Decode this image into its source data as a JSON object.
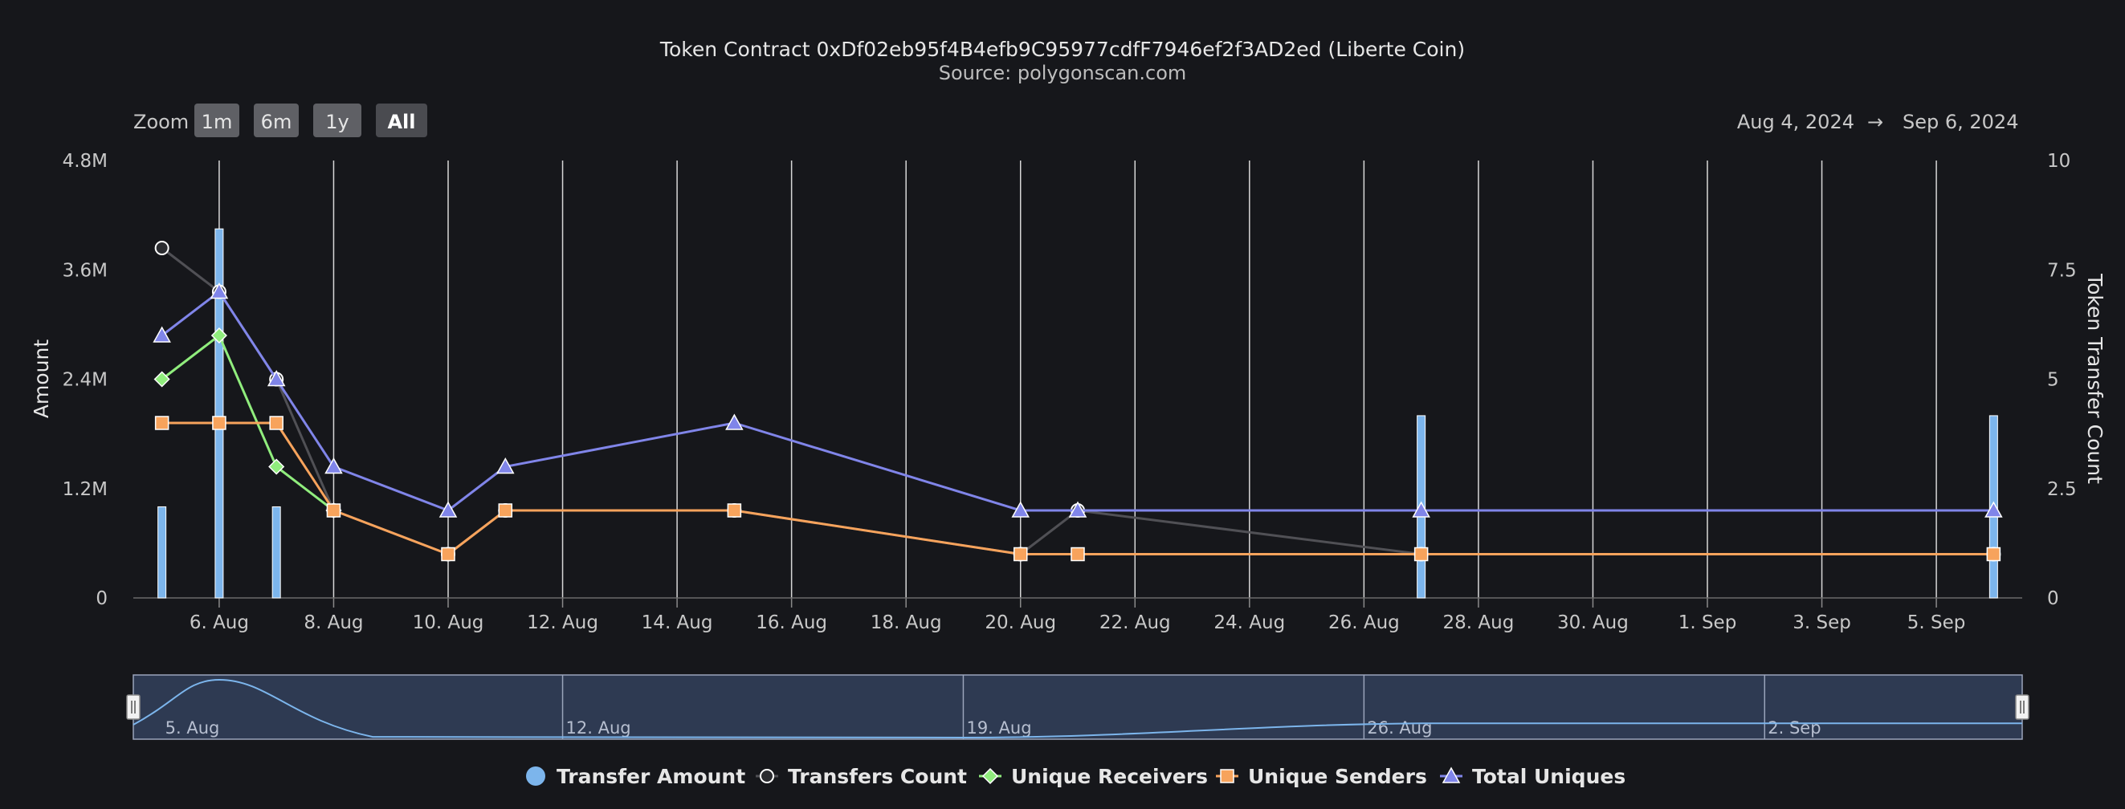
{
  "chart_data": {
    "type": "line",
    "title": "Token Contract 0xDf02eb95f4B4efb9C95977cdfF7946ef2f3AD2ed (Liberte Coin)",
    "subtitle": "Source: polygonscan.com",
    "zoom": {
      "label": "Zoom",
      "buttons": [
        "1m",
        "6m",
        "1y",
        "All"
      ],
      "selected": "All"
    },
    "range": {
      "from": "Aug 4, 2024",
      "arrow": "→",
      "to": "Sep 6, 2024"
    },
    "x_axis": {
      "min": "2024-08-04T12:00",
      "max": "2024-09-06T12:00",
      "tick_dates": [
        "2024-08-06",
        "2024-08-08",
        "2024-08-10",
        "2024-08-12",
        "2024-08-14",
        "2024-08-16",
        "2024-08-18",
        "2024-08-20",
        "2024-08-22",
        "2024-08-24",
        "2024-08-26",
        "2024-08-28",
        "2024-08-30",
        "2024-09-01",
        "2024-09-03",
        "2024-09-05"
      ],
      "tick_labels": [
        "6. Aug",
        "8. Aug",
        "10. Aug",
        "12. Aug",
        "14. Aug",
        "16. Aug",
        "18. Aug",
        "20. Aug",
        "22. Aug",
        "24. Aug",
        "26. Aug",
        "28. Aug",
        "30. Aug",
        "1. Sep",
        "3. Sep",
        "5. Sep"
      ],
      "grid": true
    },
    "y_left": {
      "label": "Amount",
      "min": 0,
      "max": 4800000,
      "ticks": [
        0,
        1200000,
        2400000,
        3600000,
        4800000
      ],
      "tick_labels": [
        "0",
        "1.2M",
        "2.4M",
        "3.6M",
        "4.8M"
      ]
    },
    "y_right": {
      "label": "Token Transfer Count",
      "min": 0,
      "max": 10,
      "ticks": [
        0,
        2.5,
        5,
        7.5,
        10
      ],
      "tick_labels": [
        "0",
        "2.5",
        "5",
        "7.5",
        "10"
      ]
    },
    "series": [
      {
        "name": "Transfer Amount",
        "kind": "column",
        "axis": "left",
        "color": "#7cb5ec",
        "marker": "circle",
        "points": [
          {
            "x": "2024-08-05",
            "y": 1000000
          },
          {
            "x": "2024-08-06",
            "y": 4050000
          },
          {
            "x": "2024-08-07",
            "y": 1000000
          },
          {
            "x": "2024-08-27",
            "y": 2000000
          },
          {
            "x": "2024-09-06",
            "y": 2000000
          }
        ]
      },
      {
        "name": "Transfers Count",
        "kind": "line",
        "axis": "right",
        "color": "#434348",
        "marker": "circle",
        "points": [
          {
            "x": "2024-08-05",
            "y": 8
          },
          {
            "x": "2024-08-06",
            "y": 7
          },
          {
            "x": "2024-08-07",
            "y": 5
          },
          {
            "x": "2024-08-08",
            "y": 2
          },
          {
            "x": "2024-08-10",
            "y": 1
          },
          {
            "x": "2024-08-11",
            "y": 2
          },
          {
            "x": "2024-08-15",
            "y": 2
          },
          {
            "x": "2024-08-20",
            "y": 1
          },
          {
            "x": "2024-08-21",
            "y": 2
          },
          {
            "x": "2024-08-27",
            "y": 1
          },
          {
            "x": "2024-09-06",
            "y": 1
          }
        ]
      },
      {
        "name": "Unique Receivers",
        "kind": "line",
        "axis": "right",
        "color": "#90ed7d",
        "marker": "diamond",
        "points": [
          {
            "x": "2024-08-05",
            "y": 5
          },
          {
            "x": "2024-08-06",
            "y": 6
          },
          {
            "x": "2024-08-07",
            "y": 3
          },
          {
            "x": "2024-08-08",
            "y": 2
          }
        ]
      },
      {
        "name": "Unique Senders",
        "kind": "line",
        "axis": "right",
        "color": "#f7a35c",
        "marker": "square",
        "points": [
          {
            "x": "2024-08-05",
            "y": 4
          },
          {
            "x": "2024-08-06",
            "y": 4
          },
          {
            "x": "2024-08-07",
            "y": 4
          },
          {
            "x": "2024-08-08",
            "y": 2
          },
          {
            "x": "2024-08-10",
            "y": 1
          },
          {
            "x": "2024-08-11",
            "y": 2
          },
          {
            "x": "2024-08-15",
            "y": 2
          },
          {
            "x": "2024-08-20",
            "y": 1
          },
          {
            "x": "2024-08-21",
            "y": 1
          },
          {
            "x": "2024-08-27",
            "y": 1
          },
          {
            "x": "2024-09-06",
            "y": 1
          }
        ]
      },
      {
        "name": "Total Uniques",
        "kind": "line",
        "axis": "right",
        "color": "#8085e9",
        "marker": "triangle",
        "points": [
          {
            "x": "2024-08-05",
            "y": 6
          },
          {
            "x": "2024-08-06",
            "y": 7
          },
          {
            "x": "2024-08-07",
            "y": 5
          },
          {
            "x": "2024-08-08",
            "y": 3
          },
          {
            "x": "2024-08-10",
            "y": 2
          },
          {
            "x": "2024-08-11",
            "y": 3
          },
          {
            "x": "2024-08-15",
            "y": 4
          },
          {
            "x": "2024-08-20",
            "y": 2
          },
          {
            "x": "2024-08-21",
            "y": 2
          },
          {
            "x": "2024-08-27",
            "y": 2
          },
          {
            "x": "2024-09-06",
            "y": 2
          }
        ]
      }
    ],
    "navigator": {
      "tick_dates": [
        "2024-08-12",
        "2024-08-19",
        "2024-08-26",
        "2024-09-02"
      ],
      "tick_labels": [
        "5. Aug",
        "12. Aug",
        "19. Aug",
        "26. Aug",
        "2. Sep"
      ],
      "label_dates": [
        "2024-08-05",
        "2024-08-12",
        "2024-08-19",
        "2024-08-26",
        "2024-09-02"
      ]
    },
    "legend": {
      "position": "bottom-center"
    }
  }
}
